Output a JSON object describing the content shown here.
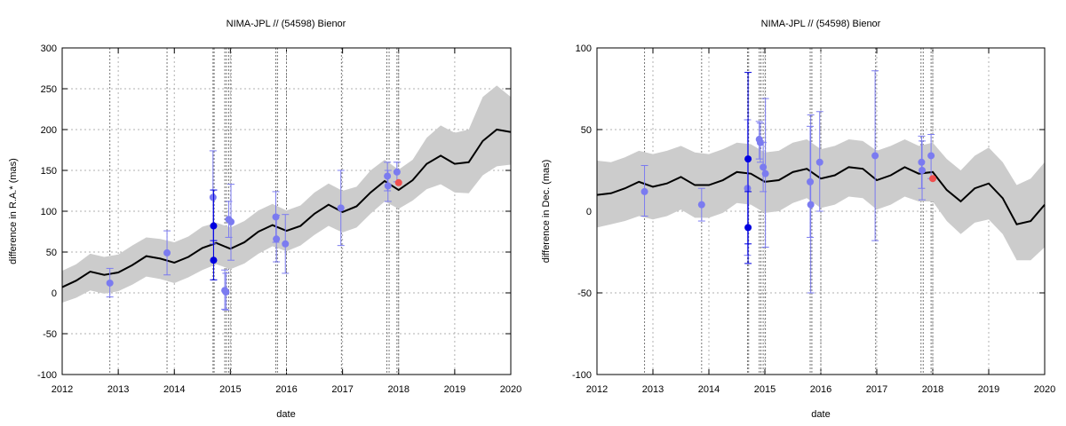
{
  "chart_data": [
    {
      "type": "scatter",
      "title": "NIMA-JPL // (54598) Bienor",
      "xlabel": "date",
      "ylabel": "difference in R.A.* (mas)",
      "xlim": [
        2012,
        2020
      ],
      "ylim": [
        -100,
        300
      ],
      "xticks": [
        "2012",
        "2013",
        "2014",
        "2015",
        "2016",
        "2017",
        "2018",
        "2019",
        "2020"
      ],
      "yticks": [
        "-100",
        "-50",
        "0",
        "50",
        "100",
        "150",
        "200",
        "250",
        "300"
      ],
      "grid": true,
      "vlines": [
        2012.85,
        2013.87,
        2014.69,
        2014.71,
        2014.9,
        2014.93,
        2014.97,
        2015.01,
        2015.81,
        2015.84,
        2016.0,
        2016.98,
        2017.79,
        2017.83,
        2017.97,
        2018.0
      ],
      "model_curve": {
        "color": "#000000",
        "band_color": "#cccccc",
        "x": [
          2012.0,
          2012.25,
          2012.5,
          2012.75,
          2013.0,
          2013.25,
          2013.5,
          2013.75,
          2014.0,
          2014.25,
          2014.5,
          2014.75,
          2015.0,
          2015.25,
          2015.5,
          2015.75,
          2016.0,
          2016.25,
          2016.5,
          2016.75,
          2017.0,
          2017.25,
          2017.5,
          2017.75,
          2018.0,
          2018.25,
          2018.5,
          2018.75,
          2019.0,
          2019.25,
          2019.5,
          2019.75,
          2020.0
        ],
        "y": [
          7,
          15,
          26,
          22,
          25,
          34,
          45,
          42,
          37,
          44,
          55,
          61,
          54,
          62,
          75,
          83,
          76,
          82,
          97,
          108,
          99,
          106,
          123,
          137,
          126,
          138,
          158,
          168,
          158,
          160,
          186,
          200,
          197
        ],
        "lower": [
          -12,
          -6,
          3,
          -1,
          2,
          10,
          20,
          17,
          12,
          19,
          28,
          35,
          29,
          36,
          48,
          57,
          51,
          58,
          71,
          82,
          74,
          80,
          97,
          112,
          103,
          113,
          127,
          133,
          123,
          122,
          144,
          155,
          157
        ],
        "upper": [
          27,
          35,
          48,
          44,
          47,
          58,
          68,
          66,
          62,
          69,
          81,
          86,
          80,
          88,
          101,
          109,
          101,
          107,
          123,
          134,
          125,
          130,
          150,
          163,
          151,
          163,
          190,
          205,
          196,
          200,
          240,
          254,
          240
        ]
      },
      "series": [
        {
          "name": "",
          "color": "#7b7bf0",
          "points": [
            {
              "x": 2012.85,
              "y": 12,
              "lo": -5,
              "hi": 30
            },
            {
              "x": 2013.87,
              "y": 49,
              "lo": 22,
              "hi": 76
            },
            {
              "x": 2014.69,
              "y": 117,
              "lo": 60,
              "hi": 174
            },
            {
              "x": 2014.9,
              "y": 3,
              "lo": -20,
              "hi": 28
            },
            {
              "x": 2014.92,
              "y": 1,
              "lo": -21,
              "hi": 24
            },
            {
              "x": 2014.97,
              "y": 90,
              "lo": 68,
              "hi": 112
            },
            {
              "x": 2015.01,
              "y": 87,
              "lo": 40,
              "hi": 133
            },
            {
              "x": 2015.81,
              "y": 93,
              "lo": 62,
              "hi": 124
            },
            {
              "x": 2015.82,
              "y": 66,
              "lo": 38,
              "hi": 95
            },
            {
              "x": 2015.98,
              "y": 60,
              "lo": 24,
              "hi": 96
            },
            {
              "x": 2016.97,
              "y": 104,
              "lo": 58,
              "hi": 150
            },
            {
              "x": 2017.8,
              "y": 143,
              "lo": 125,
              "hi": 160
            },
            {
              "x": 2017.81,
              "y": 131,
              "lo": 112,
              "hi": 150
            },
            {
              "x": 2017.97,
              "y": 148,
              "lo": 136,
              "hi": 160
            }
          ]
        },
        {
          "name": "",
          "color": "#0000e0",
          "points": [
            {
              "x": 2014.7,
              "y": 82,
              "lo": 40,
              "hi": 126
            },
            {
              "x": 2014.7,
              "y": 40,
              "lo": 16,
              "hi": 64
            }
          ]
        },
        {
          "name": "",
          "color": "#f05050",
          "points": [
            {
              "x": 2018.0,
              "y": 135
            }
          ]
        }
      ]
    },
    {
      "type": "scatter",
      "title": "NIMA-JPL // (54598) Bienor",
      "xlabel": "date",
      "ylabel": "difference in Dec. (mas)",
      "xlim": [
        2012,
        2020
      ],
      "ylim": [
        -100,
        100
      ],
      "xticks": [
        "2012",
        "2013",
        "2014",
        "2015",
        "2016",
        "2017",
        "2018",
        "2019",
        "2020"
      ],
      "yticks": [
        "-100",
        "-50",
        "0",
        "50",
        "100"
      ],
      "grid": true,
      "vlines": [
        2012.85,
        2013.87,
        2014.69,
        2014.71,
        2014.9,
        2014.93,
        2014.97,
        2015.01,
        2015.81,
        2015.84,
        2016.0,
        2016.98,
        2017.79,
        2017.83,
        2017.97,
        2018.0
      ],
      "model_curve": {
        "color": "#000000",
        "band_color": "#cccccc",
        "x": [
          2012.0,
          2012.25,
          2012.5,
          2012.75,
          2013.0,
          2013.25,
          2013.5,
          2013.75,
          2014.0,
          2014.25,
          2014.5,
          2014.75,
          2015.0,
          2015.25,
          2015.5,
          2015.75,
          2016.0,
          2016.25,
          2016.5,
          2016.75,
          2017.0,
          2017.25,
          2017.5,
          2017.75,
          2018.0,
          2018.25,
          2018.5,
          2018.75,
          2019.0,
          2019.25,
          2019.5,
          2019.75,
          2020.0
        ],
        "y": [
          10,
          11,
          14,
          18,
          15,
          17,
          21,
          16,
          16,
          19,
          24,
          23,
          18,
          19,
          24,
          26,
          20,
          22,
          27,
          26,
          19,
          22,
          27,
          23,
          24,
          13,
          6,
          14,
          17,
          8,
          -8,
          -6,
          4
        ],
        "lower": [
          -10,
          -8,
          -6,
          -3,
          -5,
          -3,
          1,
          -4,
          -4,
          -1,
          5,
          4,
          -1,
          0,
          5,
          8,
          2,
          4,
          9,
          8,
          1,
          4,
          9,
          6,
          6,
          -6,
          -14,
          -7,
          -5,
          -14,
          -30,
          -30,
          -22
        ],
        "upper": [
          31,
          30,
          33,
          37,
          35,
          37,
          40,
          36,
          35,
          38,
          42,
          41,
          36,
          37,
          42,
          44,
          38,
          40,
          44,
          43,
          37,
          40,
          44,
          40,
          42,
          32,
          25,
          34,
          39,
          30,
          16,
          20,
          30
        ]
      },
      "series": [
        {
          "name": "",
          "color": "#7b7bf0",
          "points": [
            {
              "x": 2012.85,
              "y": 12,
              "lo": -3,
              "hi": 28
            },
            {
              "x": 2013.87,
              "y": 4,
              "lo": -6,
              "hi": 14
            },
            {
              "x": 2014.69,
              "y": 14,
              "lo": -27,
              "hi": 56
            },
            {
              "x": 2014.9,
              "y": 44,
              "lo": 32,
              "hi": 55
            },
            {
              "x": 2014.92,
              "y": 42,
              "lo": 30,
              "hi": 54
            },
            {
              "x": 2014.97,
              "y": 27,
              "lo": 12,
              "hi": 42
            },
            {
              "x": 2015.01,
              "y": 23,
              "lo": -22,
              "hi": 69
            },
            {
              "x": 2015.81,
              "y": 18,
              "lo": -16,
              "hi": 52
            },
            {
              "x": 2015.82,
              "y": 4,
              "lo": -50,
              "hi": 59
            },
            {
              "x": 2015.98,
              "y": 30,
              "lo": 0,
              "hi": 61
            },
            {
              "x": 2016.97,
              "y": 34,
              "lo": -18,
              "hi": 86
            },
            {
              "x": 2017.8,
              "y": 30,
              "lo": 14,
              "hi": 46
            },
            {
              "x": 2017.81,
              "y": 25,
              "lo": 7,
              "hi": 43
            },
            {
              "x": 2017.97,
              "y": 34,
              "lo": 20,
              "hi": 47
            }
          ]
        },
        {
          "name": "",
          "color": "#0000e0",
          "points": [
            {
              "x": 2014.7,
              "y": 32,
              "lo": -20,
              "hi": 85
            },
            {
              "x": 2014.7,
              "y": -10,
              "lo": -32,
              "hi": 12
            }
          ]
        },
        {
          "name": "",
          "color": "#f05050",
          "points": [
            {
              "x": 2018.0,
              "y": 20
            }
          ]
        }
      ]
    }
  ]
}
